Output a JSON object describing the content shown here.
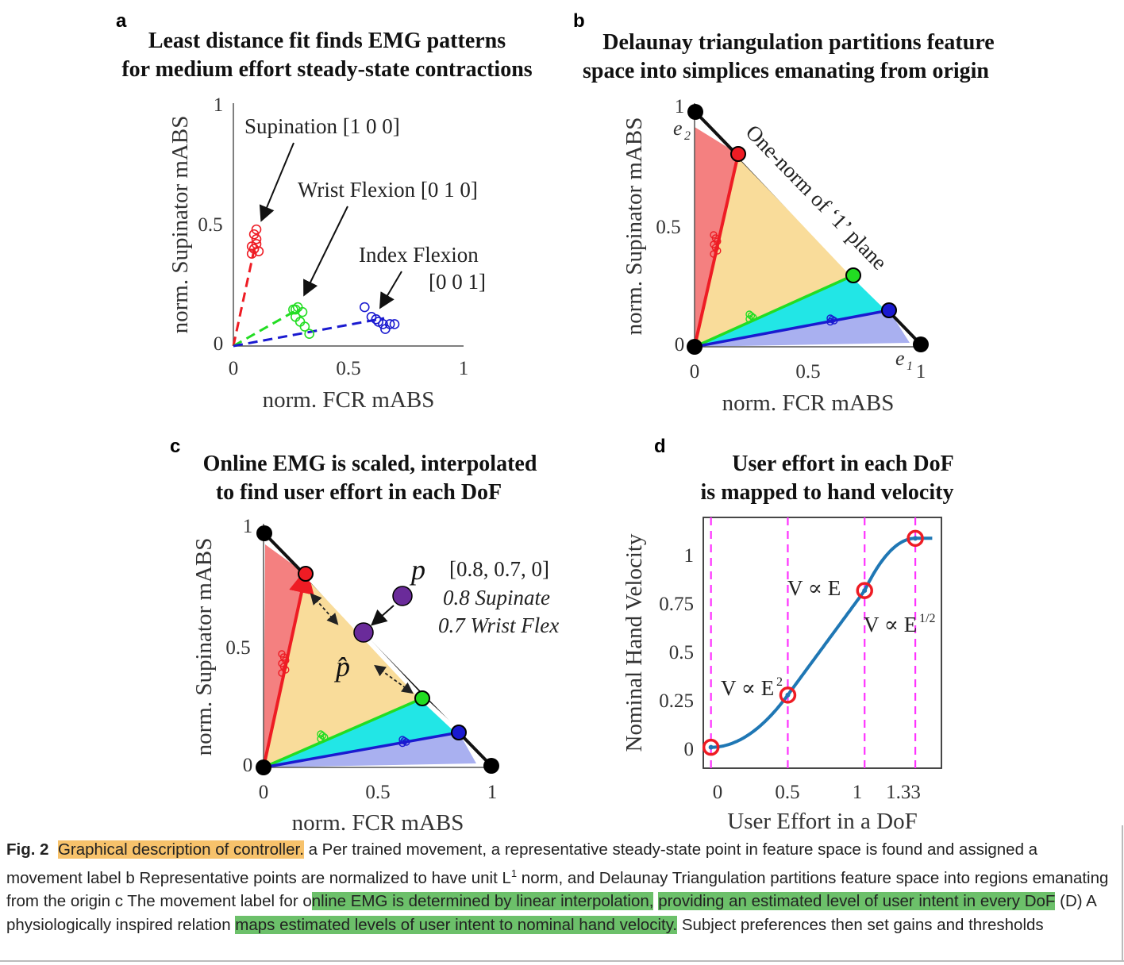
{
  "figure": {
    "panels": {
      "a": {
        "letter": "a",
        "title_line1": "Least distance fit finds EMG patterns",
        "title_line2": "for medium effort steady-state contractions",
        "xlabel": "norm. FCR mABS",
        "ylabel": "norm. Supinator mABS",
        "xticks": [
          "0",
          "0.5",
          "1"
        ],
        "yticks": [
          "0",
          "0.5",
          "1"
        ],
        "annotations": {
          "supination": "Supination [1 0 0]",
          "wrist_flexion": "Wrist Flexion [0 1 0]",
          "index_flexion_line1": "Index Flexion",
          "index_flexion_line2": "[0 0 1]"
        }
      },
      "b": {
        "letter": "b",
        "title_line1": "Delaunay triangulation partitions feature",
        "title_line2": "space into simplices emanating from origin",
        "xlabel": "norm. FCR mABS",
        "ylabel": "norm. Supinator mABS",
        "xticks": [
          "0",
          "0.5",
          "1"
        ],
        "yticks": [
          "0",
          "0.5",
          "1"
        ],
        "annotations": {
          "e2": "e",
          "e2_sub": "2",
          "e1": "e",
          "e1_sub": "1",
          "plane_label": "One-norm of ‘1’ plane"
        }
      },
      "c": {
        "letter": "c",
        "title_line1": "Online EMG is scaled, interpolated",
        "title_line2": "to find user effort in each DoF",
        "xlabel": "norm. FCR mABS",
        "ylabel": "norm. Supinator mABS",
        "xticks": [
          "0",
          "0.5",
          "1"
        ],
        "yticks": [
          "0",
          "0.5",
          "1"
        ],
        "annotations": {
          "p": "p",
          "p_hat": "p̂",
          "vector": "[0.8, 0.7, 0]",
          "line2": "0.8 Supinate",
          "line3": "0.7 Wrist Flex"
        }
      },
      "d": {
        "letter": "d",
        "title_line1": "User effort in each DoF",
        "title_line2": "is mapped to hand velocity",
        "xlabel": "User Effort in a DoF",
        "ylabel": "Nominal Hand Velocity",
        "xticks": [
          "0",
          "0.5",
          "1",
          "1.33"
        ],
        "yticks": [
          "0",
          "0.25",
          "0.5",
          "0.75",
          "1"
        ],
        "annotations": {
          "v_e2": "V ∝ E",
          "v_e2_sup": "2",
          "v_e": "V ∝ E",
          "v_esqrt": "V ∝ E",
          "v_esqrt_sup": "1/2"
        }
      }
    },
    "colors": {
      "supination": "#ee1c24",
      "wrist_flexion": "#22dd22",
      "index_flexion": "#1a1ad0",
      "curve": "#1f77b4",
      "dashed_marker": "#ff33ff",
      "region_red": "#f48080",
      "region_yellow": "#f9dc9a",
      "region_cyan": "#22e6e6",
      "region_blue": "#a9b0f0",
      "highlight_orange": "#f7c26b",
      "highlight_green": "#6cc06a"
    }
  },
  "chart_data": [
    {
      "type": "scatter",
      "panel": "a",
      "xlabel": "norm. FCR mABS",
      "ylabel": "norm. Supinator mABS",
      "xlim": [
        0,
        1
      ],
      "ylim": [
        0,
        1
      ],
      "series": [
        {
          "name": "Supination [1 0 0]",
          "points": [
            [
              0.08,
              0.38
            ],
            [
              0.09,
              0.4
            ],
            [
              0.1,
              0.42
            ],
            [
              0.1,
              0.44
            ],
            [
              0.09,
              0.46
            ],
            [
              0.1,
              0.48
            ],
            [
              0.08,
              0.41
            ],
            [
              0.11,
              0.39
            ]
          ]
        },
        {
          "name": "Wrist Flexion [0 1 0]",
          "points": [
            [
              0.26,
              0.15
            ],
            [
              0.28,
              0.16
            ],
            [
              0.3,
              0.14
            ],
            [
              0.27,
              0.12
            ],
            [
              0.29,
              0.1
            ],
            [
              0.31,
              0.08
            ],
            [
              0.33,
              0.05
            ],
            [
              0.27,
              0.15
            ]
          ]
        },
        {
          "name": "Index Flexion [0 0 1]",
          "points": [
            [
              0.57,
              0.16
            ],
            [
              0.6,
              0.12
            ],
            [
              0.63,
              0.1
            ],
            [
              0.65,
              0.09
            ],
            [
              0.66,
              0.07
            ],
            [
              0.68,
              0.09
            ],
            [
              0.7,
              0.09
            ],
            [
              0.62,
              0.11
            ]
          ]
        }
      ]
    },
    {
      "type": "line",
      "panel": "d",
      "xlabel": "User Effort in a DoF",
      "ylabel": "Nominal Hand Velocity",
      "xlim": [
        -0.05,
        1.5
      ],
      "ylim": [
        -0.1,
        1.1
      ],
      "x": [
        0,
        0.5,
        1,
        1.33,
        1.45
      ],
      "y": [
        0,
        0.25,
        0.75,
        1,
        1
      ],
      "markers": [
        [
          0,
          0
        ],
        [
          0.5,
          0.25
        ],
        [
          1,
          0.75
        ],
        [
          1.33,
          1
        ]
      ],
      "vertical_lines": [
        0,
        0.5,
        1,
        1.33
      ]
    }
  ],
  "caption": {
    "fig_label": "Fig. 2",
    "seg_title": "Graphical description of controller.",
    "seg1": " a Per trained movement, a representative steady-state point in feature space is found and assigned a movement label b Representative points are normalized to have unit L",
    "seg1_sup": "1",
    "seg2": " norm, and Delaunay Triangulation partitions feature space into regions emanating from the origin c The movement label for o",
    "seg_hl1": "nline EMG is determined by linear interpolation,",
    "seg3": " ",
    "seg_hl2": "providing an estimated level of user intent in every DoF",
    "seg4": " (D) A physiologically inspired relation ",
    "seg_hl3": "maps estimated levels of user intent to nominal hand velocity.",
    "seg5": " Subject preferences then set gains and thresholds"
  }
}
